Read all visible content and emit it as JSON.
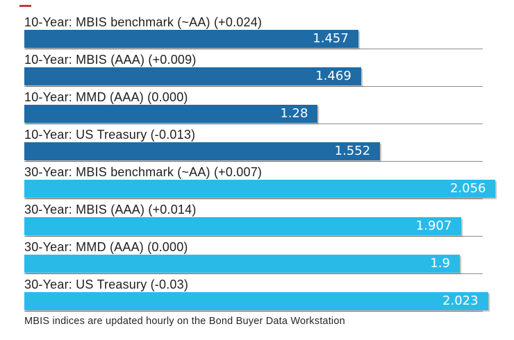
{
  "chart_data": {
    "type": "bar",
    "orientation": "horizontal",
    "title": "",
    "x_axis": {
      "min": 0,
      "max": 2.12,
      "gridline_end_value": 2.0,
      "gridlines": "per-row horizontal rule"
    },
    "group_colors": {
      "10-Year": "#1F6BA5",
      "30-Year": "#29BBE8"
    },
    "gridline_color": "#8C8C8C",
    "value_text_color": "#FFFFFF",
    "label_text_color": "#1F1F1F",
    "rows": [
      {
        "group": "10-Year",
        "label": "10-Year: MBIS benchmark (~AA) (+0.024)",
        "value": 1.457,
        "value_label": "1.457"
      },
      {
        "group": "10-Year",
        "label": "10-Year: MBIS (AAA) (+0.009)",
        "value": 1.469,
        "value_label": "1.469"
      },
      {
        "group": "10-Year",
        "label": "10-Year: MMD (AAA) (0.000)",
        "value": 1.28,
        "value_label": "1.28"
      },
      {
        "group": "10-Year",
        "label": "10-Year: US Treasury (-0.013)",
        "value": 1.552,
        "value_label": "1.552"
      },
      {
        "group": "30-Year",
        "label": "30-Year: MBIS benchmark (~AA) (+0.007)",
        "value": 2.056,
        "value_label": "2.056"
      },
      {
        "group": "30-Year",
        "label": "30-Year: MBIS (AAA) (+0.014)",
        "value": 1.907,
        "value_label": "1.907"
      },
      {
        "group": "30-Year",
        "label": "30-Year: MMD (AAA) (0.000)",
        "value": 1.9,
        "value_label": "1.9"
      },
      {
        "group": "30-Year",
        "label": "30-Year: US Treasury (-0.03)",
        "value": 2.023,
        "value_label": "2.023"
      }
    ],
    "footnote": "MBIS indices are updated hourly on the Bond Buyer Data Workstation"
  },
  "decoration": {
    "top_left_dash_color": "#C5393E"
  }
}
